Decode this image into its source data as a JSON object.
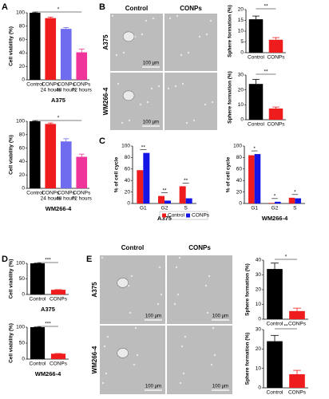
{
  "chart_data": [
    {
      "type": "bar",
      "categories": [
        [
          "Control"
        ],
        [
          "CONPs",
          "24 hours"
        ],
        [
          "CONPs",
          "48 hours"
        ],
        [
          "CONPs",
          "72 hours"
        ]
      ],
      "xlabel": "A375",
      "ylabel": "Cell viability (%)",
      "series": [
        {
          "colors": [
            "#000000",
            "#ee1c1c",
            "#6f6cf0",
            "#f0359a"
          ],
          "values": [
            100,
            92,
            76,
            41
          ],
          "errors": [
            1,
            1.5,
            2,
            5
          ]
        }
      ],
      "ylim": [
        0,
        100
      ],
      "yticks": [
        0,
        20,
        40,
        60,
        80,
        100
      ],
      "annotations": [
        "*"
      ]
    },
    {
      "type": "bar",
      "categories": [
        [
          "Control"
        ],
        [
          "CONPs",
          "24 hours"
        ],
        [
          "CONPs",
          "48 hours"
        ],
        [
          "CONPs",
          "72 hours"
        ]
      ],
      "xlabel": "WM266-4",
      "ylabel": "Cell viability (%)",
      "series": [
        {
          "colors": [
            "#000000",
            "#ee1c1c",
            "#6f6cf0",
            "#f0359a"
          ],
          "values": [
            100,
            96,
            70,
            47
          ],
          "errors": [
            1,
            1.5,
            4,
            4
          ]
        }
      ],
      "ylim": [
        0,
        100
      ],
      "yticks": [
        0,
        20,
        40,
        60,
        80,
        100
      ],
      "annotations": [
        "*"
      ]
    },
    {
      "type": "bar",
      "categories": [
        [
          "Control"
        ],
        [
          "CONPs"
        ]
      ],
      "ylabel": "Sphere formation (%)",
      "series": [
        {
          "colors": [
            "#000000",
            "#ee1c1c"
          ],
          "values": [
            15.5,
            6
          ],
          "errors": [
            1.5,
            1
          ]
        }
      ],
      "ylim": [
        0,
        20
      ],
      "yticks": [
        0,
        5,
        10,
        15,
        20
      ],
      "annotations": [
        "**"
      ]
    },
    {
      "type": "bar",
      "categories": [
        [
          "Control"
        ],
        [
          "CONPs"
        ]
      ],
      "ylabel": "Sphere formation (%)",
      "series": [
        {
          "colors": [
            "#000000",
            "#ee1c1c"
          ],
          "values": [
            24,
            7.5
          ],
          "errors": [
            3,
            1
          ]
        }
      ],
      "ylim": [
        0,
        30
      ],
      "yticks": [
        0,
        10,
        20,
        30
      ],
      "annotations": [
        "**"
      ]
    },
    {
      "type": "bar",
      "categories": [
        [
          "G1"
        ],
        [
          "G2"
        ],
        [
          "S"
        ]
      ],
      "xlabel": "A375",
      "ylabel": "% of cell cycle",
      "series": [
        {
          "name": "Control",
          "color": "#ee1c1c",
          "values": [
            58,
            13,
            30
          ]
        },
        {
          "name": "CONPs",
          "color": "#1414e6",
          "values": [
            88,
            5,
            9
          ]
        }
      ],
      "ylim": [
        0,
        100
      ],
      "yticks": [
        0,
        20,
        40,
        60,
        80,
        100
      ],
      "annotations": [
        "**",
        "**",
        "**"
      ]
    },
    {
      "type": "bar",
      "categories": [
        [
          "G1"
        ],
        [
          "G2"
        ],
        [
          "S"
        ]
      ],
      "xlabel": "WM266-4",
      "ylabel": "% of cell cycle",
      "series": [
        {
          "color": "#ee1c1c",
          "values": [
            84,
            1,
            10
          ]
        },
        {
          "color": "#1414e6",
          "values": [
            86,
            3,
            9
          ]
        }
      ],
      "ylim": [
        0,
        100
      ],
      "yticks": [
        0,
        20,
        40,
        60,
        80,
        100
      ],
      "annotations": [
        "*",
        "*",
        "*"
      ]
    },
    {
      "type": "bar",
      "categories": [
        [
          "Control"
        ],
        [
          "CONPs"
        ]
      ],
      "xlabel": "A375",
      "ylabel": "Cell viability (%)",
      "series": [
        {
          "colors": [
            "#000000",
            "#ee1c1c"
          ],
          "values": [
            100,
            15
          ],
          "errors": [
            0.5,
            0.5
          ]
        }
      ],
      "ylim": [
        0,
        100
      ],
      "yticks": [
        0,
        50,
        100
      ],
      "annotations": [
        "***"
      ]
    },
    {
      "type": "bar",
      "categories": [
        [
          "Control"
        ],
        [
          "CONPs"
        ]
      ],
      "xlabel": "WM266-4",
      "ylabel": "Cell viability (%)",
      "series": [
        {
          "colors": [
            "#000000",
            "#ee1c1c"
          ],
          "values": [
            100,
            17
          ],
          "errors": [
            0.5,
            0.5
          ]
        }
      ],
      "ylim": [
        0,
        100
      ],
      "yticks": [
        0,
        50,
        100
      ],
      "annotations": [
        "***"
      ]
    },
    {
      "type": "bar",
      "categories": [
        [
          "Control"
        ],
        [
          "CONPs"
        ]
      ],
      "ylabel": "Sphere formation (%)",
      "series": [
        {
          "colors": [
            "#000000",
            "#ee1c1c"
          ],
          "values": [
            34,
            5.5
          ],
          "errors": [
            4,
            2
          ]
        }
      ],
      "ylim": [
        0,
        40
      ],
      "yticks": [
        0,
        10,
        20,
        30,
        40
      ],
      "annotations": [
        "*"
      ]
    },
    {
      "type": "bar",
      "categories": [
        [
          "Control"
        ],
        [
          "CONPs"
        ]
      ],
      "ylabel": "Sphere formation (%)",
      "series": [
        {
          "colors": [
            "#000000",
            "#ee1c1c"
          ],
          "values": [
            24,
            7
          ],
          "errors": [
            3,
            2
          ]
        }
      ],
      "ylim": [
        0,
        30
      ],
      "yticks": [
        0,
        10,
        20,
        30
      ],
      "annotations": [
        "**"
      ]
    }
  ],
  "figure": {
    "panels": [
      "A",
      "B",
      "C",
      "D",
      "E"
    ],
    "micrographs": [
      {
        "columns": [
          "Control",
          "CONPs"
        ],
        "rows": [
          "A375",
          "WM266-4"
        ],
        "scale_bars": [
          "100 µm",
          "100 µm"
        ]
      },
      {
        "columns": [
          "Control",
          "CONPs"
        ],
        "rows": [
          "A375",
          "WM266-4"
        ],
        "scale_bars": [
          "100 µm",
          "100 µm",
          "100 µm",
          "100 µm"
        ]
      }
    ]
  }
}
